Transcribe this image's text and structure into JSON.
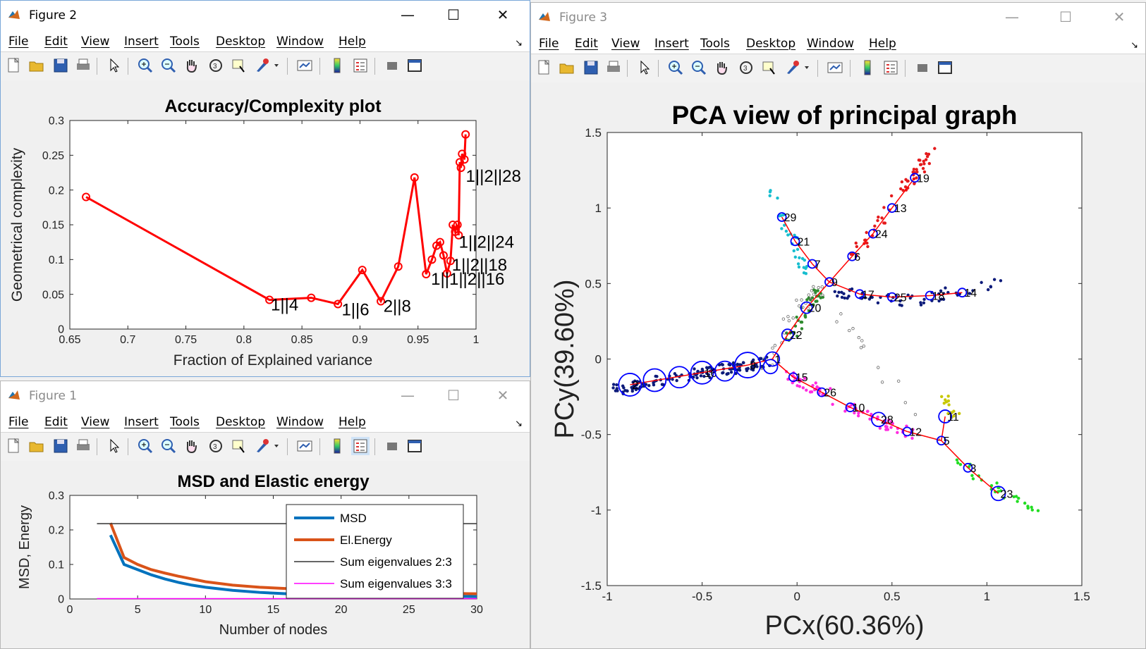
{
  "fig2": {
    "title": "Figure 2",
    "menu": [
      "File",
      "Edit",
      "View",
      "Insert",
      "Tools",
      "Desktop",
      "Window",
      "Help"
    ],
    "chart_data": {
      "type": "line",
      "title": "Accuracy/Complexity plot",
      "xlabel": "Fraction of Explained variance",
      "ylabel": "Geometrical complexity",
      "xlim": [
        0.65,
        1
      ],
      "ylim": [
        0,
        0.3
      ],
      "xticks": [
        "0.65",
        "0.7",
        "0.75",
        "0.8",
        "0.85",
        "0.9",
        "0.95",
        "1"
      ],
      "yticks": [
        "0",
        "0.05",
        "0.1",
        "0.15",
        "0.2",
        "0.25",
        "0.3"
      ],
      "color": "#ff0000",
      "points": [
        [
          0.664,
          0.19
        ],
        [
          0.822,
          0.042
        ],
        [
          0.858,
          0.045
        ],
        [
          0.881,
          0.036
        ],
        [
          0.902,
          0.085
        ],
        [
          0.918,
          0.04
        ],
        [
          0.933,
          0.09
        ],
        [
          0.947,
          0.218
        ],
        [
          0.957,
          0.079
        ],
        [
          0.962,
          0.1
        ],
        [
          0.966,
          0.12
        ],
        [
          0.969,
          0.125
        ],
        [
          0.972,
          0.106
        ],
        [
          0.975,
          0.08
        ],
        [
          0.978,
          0.098
        ],
        [
          0.98,
          0.15
        ],
        [
          0.982,
          0.14
        ],
        [
          0.984,
          0.15
        ],
        [
          0.985,
          0.135
        ],
        [
          0.986,
          0.24
        ],
        [
          0.987,
          0.232
        ],
        [
          0.988,
          0.252
        ],
        [
          0.99,
          0.244
        ],
        [
          0.991,
          0.28
        ]
      ],
      "annotations": [
        {
          "text": "1||4",
          "x": 0.822,
          "y": 0.035
        },
        {
          "text": "1||6",
          "x": 0.883,
          "y": 0.028
        },
        {
          "text": "2||8",
          "x": 0.919,
          "y": 0.033
        },
        {
          "text": "1||2||28",
          "x": 0.99,
          "y": 0.22
        },
        {
          "text": "1||2||24",
          "x": 0.984,
          "y": 0.125
        },
        {
          "text": "1||2||18",
          "x": 0.978,
          "y": 0.092
        },
        {
          "text": "1||1||2||16",
          "x": 0.96,
          "y": 0.072
        }
      ]
    }
  },
  "fig1": {
    "title": "Figure 1",
    "menu": [
      "File",
      "Edit",
      "View",
      "Insert",
      "Tools",
      "Desktop",
      "Window",
      "Help"
    ],
    "chart_data": {
      "type": "line",
      "title": "MSD and Elastic energy",
      "xlabel": "Number of nodes",
      "ylabel": "MSD, Energy",
      "xlim": [
        0,
        30
      ],
      "ylim": [
        0,
        0.3
      ],
      "xticks": [
        "0",
        "5",
        "10",
        "15",
        "20",
        "25",
        "30"
      ],
      "yticks": [
        "0",
        "0.1",
        "0.2",
        "0.3"
      ],
      "legend_position": "top-right",
      "series": [
        {
          "name": "MSD",
          "color": "#0072bd",
          "x": [
            3,
            4,
            5,
            6,
            7,
            8,
            9,
            10,
            12,
            14,
            16,
            18,
            20,
            22,
            24,
            26,
            28,
            30
          ],
          "y": [
            0.185,
            0.1,
            0.085,
            0.07,
            0.058,
            0.048,
            0.04,
            0.034,
            0.025,
            0.019,
            0.015,
            0.013,
            0.011,
            0.01,
            0.009,
            0.008,
            0.008,
            0.007
          ]
        },
        {
          "name": "El.Energy",
          "color": "#d95319",
          "x": [
            3,
            4,
            5,
            6,
            7,
            8,
            9,
            10,
            12,
            14,
            16,
            18,
            20,
            22,
            24,
            26,
            28,
            30
          ],
          "y": [
            0.22,
            0.12,
            0.1,
            0.085,
            0.075,
            0.066,
            0.058,
            0.05,
            0.04,
            0.034,
            0.03,
            0.027,
            0.025,
            0.022,
            0.02,
            0.018,
            0.016,
            0.015
          ]
        },
        {
          "name": "Sum eigenvalues 2:3",
          "color": "#333333",
          "x": [
            2,
            30
          ],
          "y": [
            0.218,
            0.218
          ]
        },
        {
          "name": "Sum eigenvalues 3:3",
          "color": "#ff00ff",
          "x": [
            2,
            30
          ],
          "y": [
            0.001,
            0.001
          ]
        }
      ]
    }
  },
  "fig3": {
    "title": "Figure 3",
    "menu": [
      "File",
      "Edit",
      "View",
      "Insert",
      "Tools",
      "Desktop",
      "Window",
      "Help"
    ],
    "chart_data": {
      "type": "scatter",
      "title": "PCA view of principal graph",
      "xlabel": "PCx(60.36%)",
      "ylabel": "PCy(39.60%)",
      "xlim": [
        -1,
        1.5
      ],
      "ylim": [
        -1.5,
        1.5
      ],
      "xticks": [
        "-1",
        "-0.5",
        "0",
        "0.5",
        "1",
        "1.5"
      ],
      "yticks": [
        "-1.5",
        "-1",
        "-0.5",
        "0",
        "0.5",
        "1",
        "1.5"
      ],
      "nodes": [
        {
          "id": "19",
          "x": 0.62,
          "y": 1.2
        },
        {
          "id": "13",
          "x": 0.5,
          "y": 1.0
        },
        {
          "id": "24",
          "x": 0.4,
          "y": 0.83
        },
        {
          "id": "6",
          "x": 0.29,
          "y": 0.68
        },
        {
          "id": "29",
          "x": -0.08,
          "y": 0.94
        },
        {
          "id": "21",
          "x": -0.01,
          "y": 0.78
        },
        {
          "id": "7",
          "x": 0.08,
          "y": 0.63
        },
        {
          "id": "9",
          "x": 0.17,
          "y": 0.51
        },
        {
          "id": "17",
          "x": 0.33,
          "y": 0.43
        },
        {
          "id": "25",
          "x": 0.5,
          "y": 0.41
        },
        {
          "id": "18",
          "x": 0.7,
          "y": 0.42
        },
        {
          "id": "14",
          "x": 0.87,
          "y": 0.44
        },
        {
          "id": "20",
          "x": 0.05,
          "y": 0.34
        },
        {
          "id": "22",
          "x": -0.05,
          "y": 0.16
        },
        {
          "id": "1",
          "x": -0.13,
          "y": 0.0
        },
        {
          "id": "15",
          "x": -0.02,
          "y": -0.12
        },
        {
          "id": "26",
          "x": 0.13,
          "y": -0.22
        },
        {
          "id": "10",
          "x": 0.28,
          "y": -0.32
        },
        {
          "id": "28",
          "x": 0.43,
          "y": -0.4
        },
        {
          "id": "12",
          "x": 0.58,
          "y": -0.48
        },
        {
          "id": "5",
          "x": 0.76,
          "y": -0.54
        },
        {
          "id": "11",
          "x": 0.78,
          "y": -0.38
        },
        {
          "id": "3",
          "x": 0.9,
          "y": -0.72
        },
        {
          "id": "23",
          "x": 1.06,
          "y": -0.89
        },
        {
          "id": "8",
          "x": -0.26,
          "y": -0.04
        },
        {
          "id": "16",
          "x": -0.5,
          "y": -0.09
        },
        {
          "id": "2",
          "x": -0.88,
          "y": -0.17
        }
      ],
      "edges": [
        [
          "19",
          "13"
        ],
        [
          "13",
          "24"
        ],
        [
          "24",
          "6"
        ],
        [
          "6",
          "9"
        ],
        [
          "29",
          "21"
        ],
        [
          "21",
          "7"
        ],
        [
          "7",
          "9"
        ],
        [
          "9",
          "17"
        ],
        [
          "17",
          "25"
        ],
        [
          "25",
          "18"
        ],
        [
          "18",
          "14"
        ],
        [
          "9",
          "20"
        ],
        [
          "20",
          "22"
        ],
        [
          "22",
          "1"
        ],
        [
          "1",
          "15"
        ],
        [
          "15",
          "26"
        ],
        [
          "26",
          "10"
        ],
        [
          "10",
          "28"
        ],
        [
          "28",
          "12"
        ],
        [
          "12",
          "5"
        ],
        [
          "5",
          "11"
        ],
        [
          "5",
          "3"
        ],
        [
          "3",
          "23"
        ],
        [
          "1",
          "8"
        ],
        [
          "8",
          "16"
        ],
        [
          "16",
          "2"
        ]
      ]
    }
  }
}
